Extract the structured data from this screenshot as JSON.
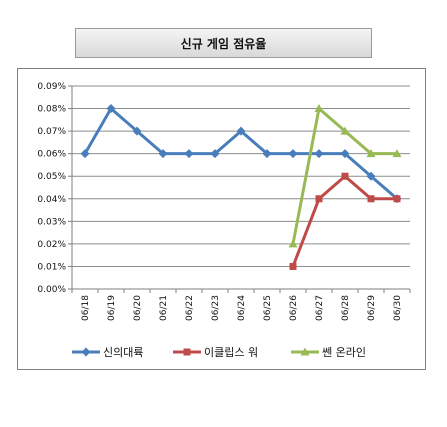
{
  "chart_data": {
    "type": "line",
    "title": "신규 게임 점유율",
    "categories": [
      "06/18",
      "06/19",
      "06/20",
      "06/21",
      "06/22",
      "06/23",
      "06/24",
      "06/25",
      "06/26",
      "06/27",
      "06/28",
      "06/29",
      "06/30"
    ],
    "ylim": [
      0,
      0.09
    ],
    "yticks": [
      "0.00%",
      "0.01%",
      "0.02%",
      "0.03%",
      "0.04%",
      "0.05%",
      "0.06%",
      "0.07%",
      "0.08%",
      "0.09%"
    ],
    "grid": true,
    "legend_position": "bottom",
    "series": [
      {
        "name": "신의대륙",
        "color": "#4a7ebb",
        "marker": "diamond",
        "values": [
          0.06,
          0.08,
          0.07,
          0.06,
          0.06,
          0.06,
          0.07,
          0.06,
          0.06,
          0.06,
          0.06,
          0.05,
          0.04
        ]
      },
      {
        "name": "이클립스 워",
        "color": "#be4b48",
        "marker": "square",
        "values": [
          null,
          null,
          null,
          null,
          null,
          null,
          null,
          null,
          0.01,
          0.04,
          0.05,
          0.04,
          0.04
        ]
      },
      {
        "name": "쎈 온라인",
        "color": "#98b954",
        "marker": "triangle",
        "values": [
          null,
          null,
          null,
          null,
          null,
          null,
          null,
          null,
          0.02,
          0.08,
          0.07,
          0.06,
          0.06
        ]
      }
    ]
  }
}
